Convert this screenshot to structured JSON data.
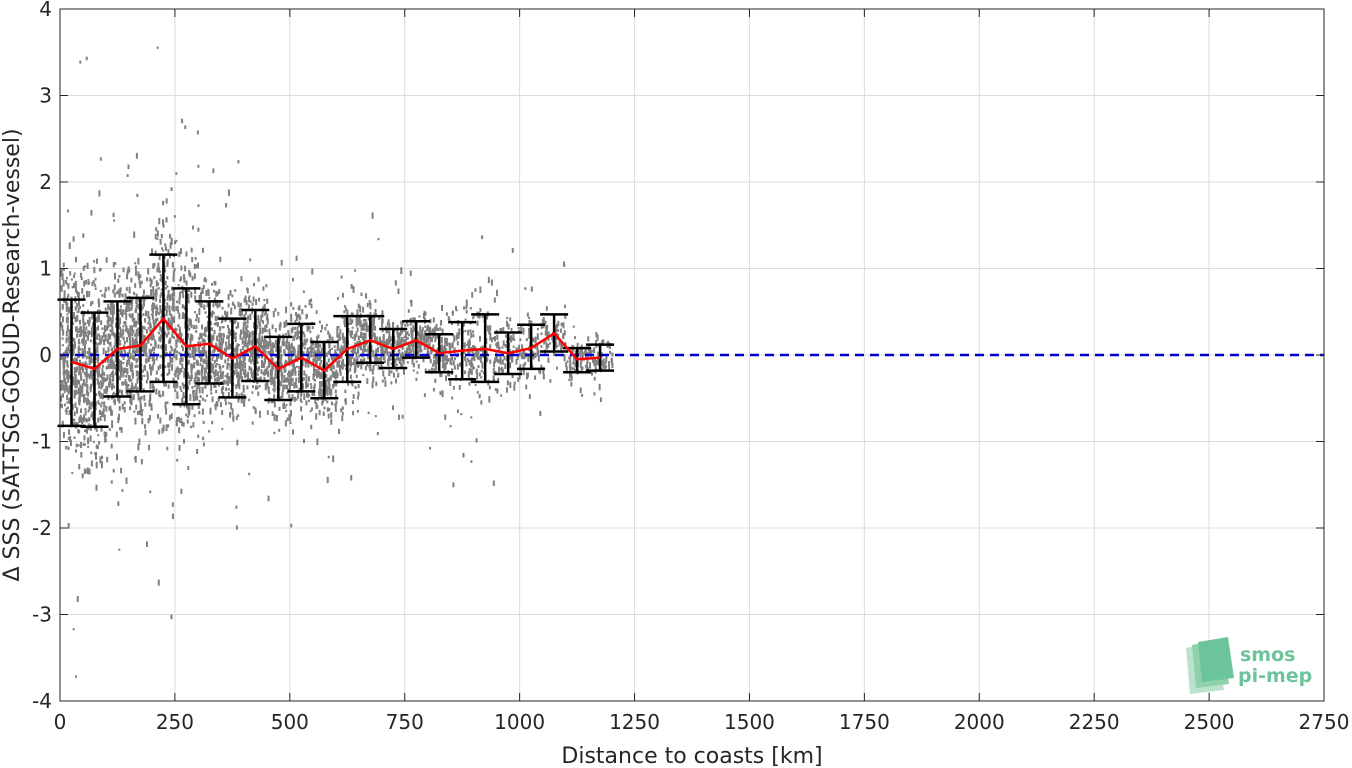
{
  "chart_data": {
    "type": "scatter",
    "xlabel": "Distance to coasts [km]",
    "ylabel": "Δ SSS (SAT-TSG-GOSUD-Research-vessel)",
    "xlim": [
      0,
      2750
    ],
    "ylim": [
      -4,
      4
    ],
    "x_ticks": [
      0,
      250,
      500,
      750,
      1000,
      1250,
      1500,
      1750,
      2000,
      2250,
      2500,
      2750
    ],
    "y_ticks": [
      -4,
      -3,
      -2,
      -1,
      0,
      1,
      2,
      3,
      4
    ],
    "grid": true,
    "zero_line": {
      "y": 0,
      "color": "#0000cc",
      "style": "dashed"
    },
    "scatter_color": "#808080",
    "series": [
      {
        "style": "mean-with-std-errorbars",
        "line_color": "#ff0000",
        "errorbar_color": "#000000",
        "x": [
          25,
          75,
          125,
          175,
          225,
          275,
          325,
          375,
          425,
          475,
          525,
          575,
          625,
          675,
          725,
          775,
          825,
          875,
          925,
          975,
          1025,
          1075,
          1125,
          1175
        ],
        "mean": [
          -0.08,
          -0.16,
          0.07,
          0.11,
          0.42,
          0.1,
          0.13,
          -0.04,
          0.1,
          -0.16,
          -0.03,
          -0.18,
          0.07,
          0.17,
          0.07,
          0.17,
          0.02,
          0.05,
          0.07,
          0.02,
          0.08,
          0.25,
          -0.05,
          -0.03
        ],
        "upper": [
          0.64,
          0.49,
          0.62,
          0.66,
          1.16,
          0.77,
          0.62,
          0.42,
          0.52,
          0.21,
          0.36,
          0.15,
          0.45,
          0.45,
          0.3,
          0.39,
          0.24,
          0.38,
          0.47,
          0.26,
          0.35,
          0.47,
          0.08,
          0.12
        ],
        "lower": [
          -0.82,
          -0.83,
          -0.48,
          -0.42,
          -0.31,
          -0.57,
          -0.33,
          -0.49,
          -0.3,
          -0.52,
          -0.42,
          -0.5,
          -0.31,
          -0.09,
          -0.15,
          -0.03,
          -0.2,
          -0.28,
          -0.31,
          -0.22,
          -0.16,
          0.04,
          -0.2,
          -0.18
        ]
      }
    ]
  },
  "logo": {
    "line1": "smos",
    "line2": "pi-mep",
    "color": "#6cc49a"
  }
}
